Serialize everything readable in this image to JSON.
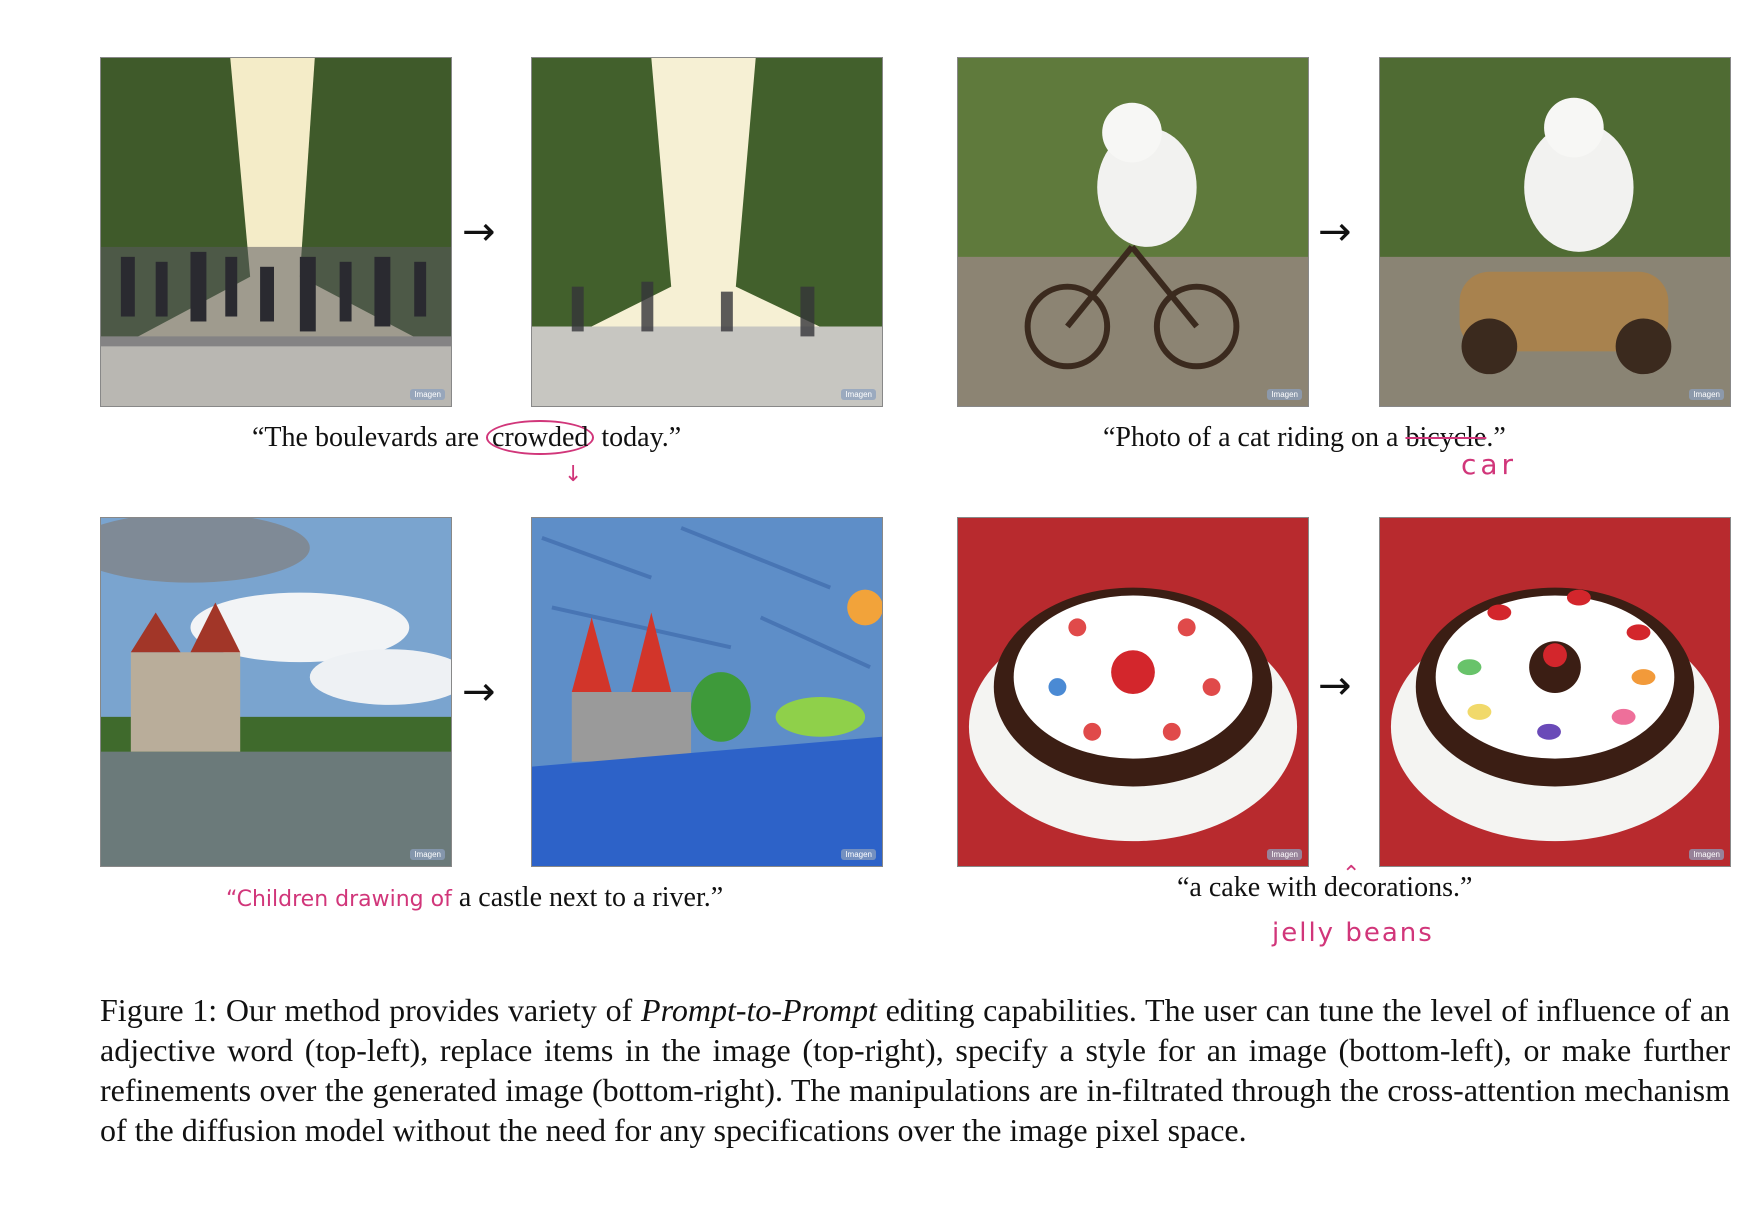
{
  "panels": {
    "watermark": "Imagen"
  },
  "arrows": {
    "glyph": "→"
  },
  "captions": {
    "boulevard": {
      "open": "“The boulevards are ",
      "highlight": "crowded",
      "close": " today.”"
    },
    "cat": {
      "open": "“Photo of a cat riding on a ",
      "struck": "bicycle",
      "close": ".”",
      "replacement": "car"
    },
    "castle": {
      "added": "“Children drawing of",
      "rest": " a castle next to a river.”"
    },
    "cake": {
      "open": "“a cake with",
      "close": " decorations.”",
      "inserted": "jelly beans"
    }
  },
  "figure": {
    "label": "Figure 1:",
    "text_a": " Our method provides variety of ",
    "italic": "Prompt-to-Prompt",
    "text_b": " editing capabilities. The user can tune the level of influence of an adjective word (top-left), replace items in the image (top-right), specify a style for an image (bottom-left), or make further refinements over the generated image (bottom-right). The manipulations are in-filtrated through the cross-attention mechanism of the diffusion model without the need for any specifications over the image pixel space."
  },
  "colors": {
    "annotation": "#d1367a"
  }
}
